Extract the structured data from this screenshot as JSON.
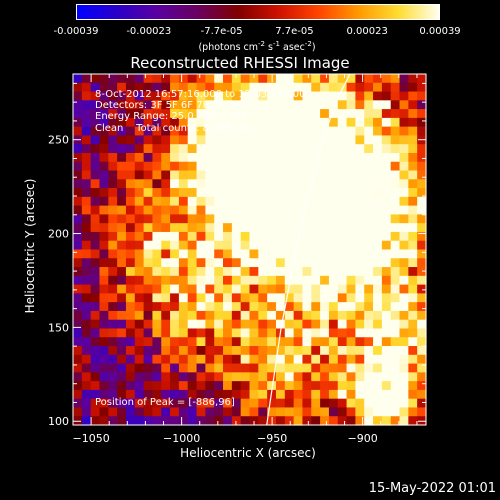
{
  "colorbar": {
    "tick_labels": [
      "-0.00039",
      "-0.00023",
      "-7.7e-05",
      "7.7e-05",
      "0.00023",
      "0.00039"
    ],
    "unit_parts": [
      "(photons cm",
      "-2",
      " s",
      "-1",
      " asec",
      "-2",
      ")"
    ],
    "colors": [
      "#0000ff",
      "#2b00c8",
      "#5a00a0",
      "#6a0060",
      "#800000",
      "#cc1100",
      "#ff4400",
      "#ff9900",
      "#ffdd33",
      "#ffffee"
    ]
  },
  "chart_data": {
    "type": "heatmap",
    "title": "Reconstructed RHESSI Image",
    "xlabel": "Heliocentric X (arcsec)",
    "ylabel": "Heliocentric Y (arcsec)",
    "xlim": [
      -1060,
      -865
    ],
    "ylim": [
      98,
      285
    ],
    "xticks": [
      -1050,
      -1000,
      -950,
      -900
    ],
    "yticks": [
      100,
      150,
      200,
      250
    ],
    "xtick_labels": [
      "−1050",
      "−1000",
      "−950",
      "−900"
    ],
    "ytick_labels": [
      "100",
      "150",
      "200",
      "250"
    ],
    "value_range": [
      -0.00039,
      0.00039
    ],
    "limb_curve": [
      [
        -953,
        98
      ],
      [
        -945,
        150
      ],
      [
        -935,
        200
      ],
      [
        -925,
        240
      ],
      [
        -915,
        270
      ],
      [
        -907,
        285
      ]
    ],
    "peak_position": [
      -886,
      96
    ],
    "info_lines": [
      "8-Oct-2012 16:57:16.000 to 17:03:16.000",
      "Detectors: 3F 5F 6F 7F 8F, Att 0",
      "Energy Range: 25.0 - 50.0 keV",
      "Clean    Total counts: 8.96E+03"
    ],
    "peak_label": "Position of Peak = [-886,96]"
  },
  "timestamp": "15-May-2022 01:01"
}
